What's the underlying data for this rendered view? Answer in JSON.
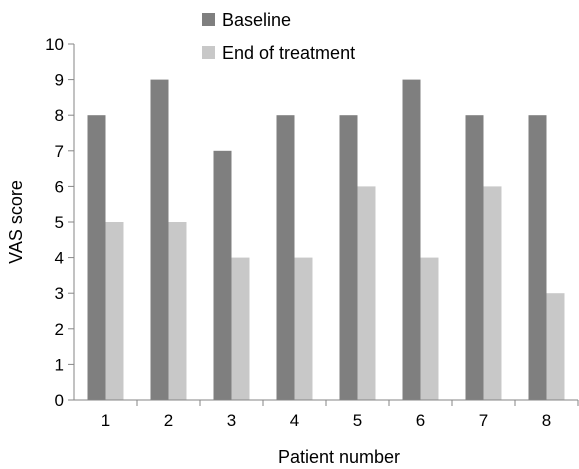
{
  "chart_data": {
    "type": "bar",
    "title": "",
    "xlabel": "Patient number",
    "ylabel": "VAS score",
    "categories": [
      "1",
      "2",
      "3",
      "4",
      "5",
      "6",
      "7",
      "8"
    ],
    "series": [
      {
        "name": "Baseline",
        "values": [
          8,
          9,
          7,
          8,
          8,
          9,
          8,
          8
        ],
        "color": "#7f7f7f"
      },
      {
        "name": "End of treatment",
        "values": [
          5,
          5,
          4,
          4,
          6,
          4,
          6,
          3
        ],
        "color": "#c8c8c8"
      }
    ],
    "ylim": [
      0,
      10
    ],
    "yticks": [
      "0",
      "1",
      "2",
      "3",
      "4",
      "5",
      "6",
      "7",
      "8",
      "9",
      "10"
    ],
    "grid": false,
    "legend_position": "top-center"
  }
}
